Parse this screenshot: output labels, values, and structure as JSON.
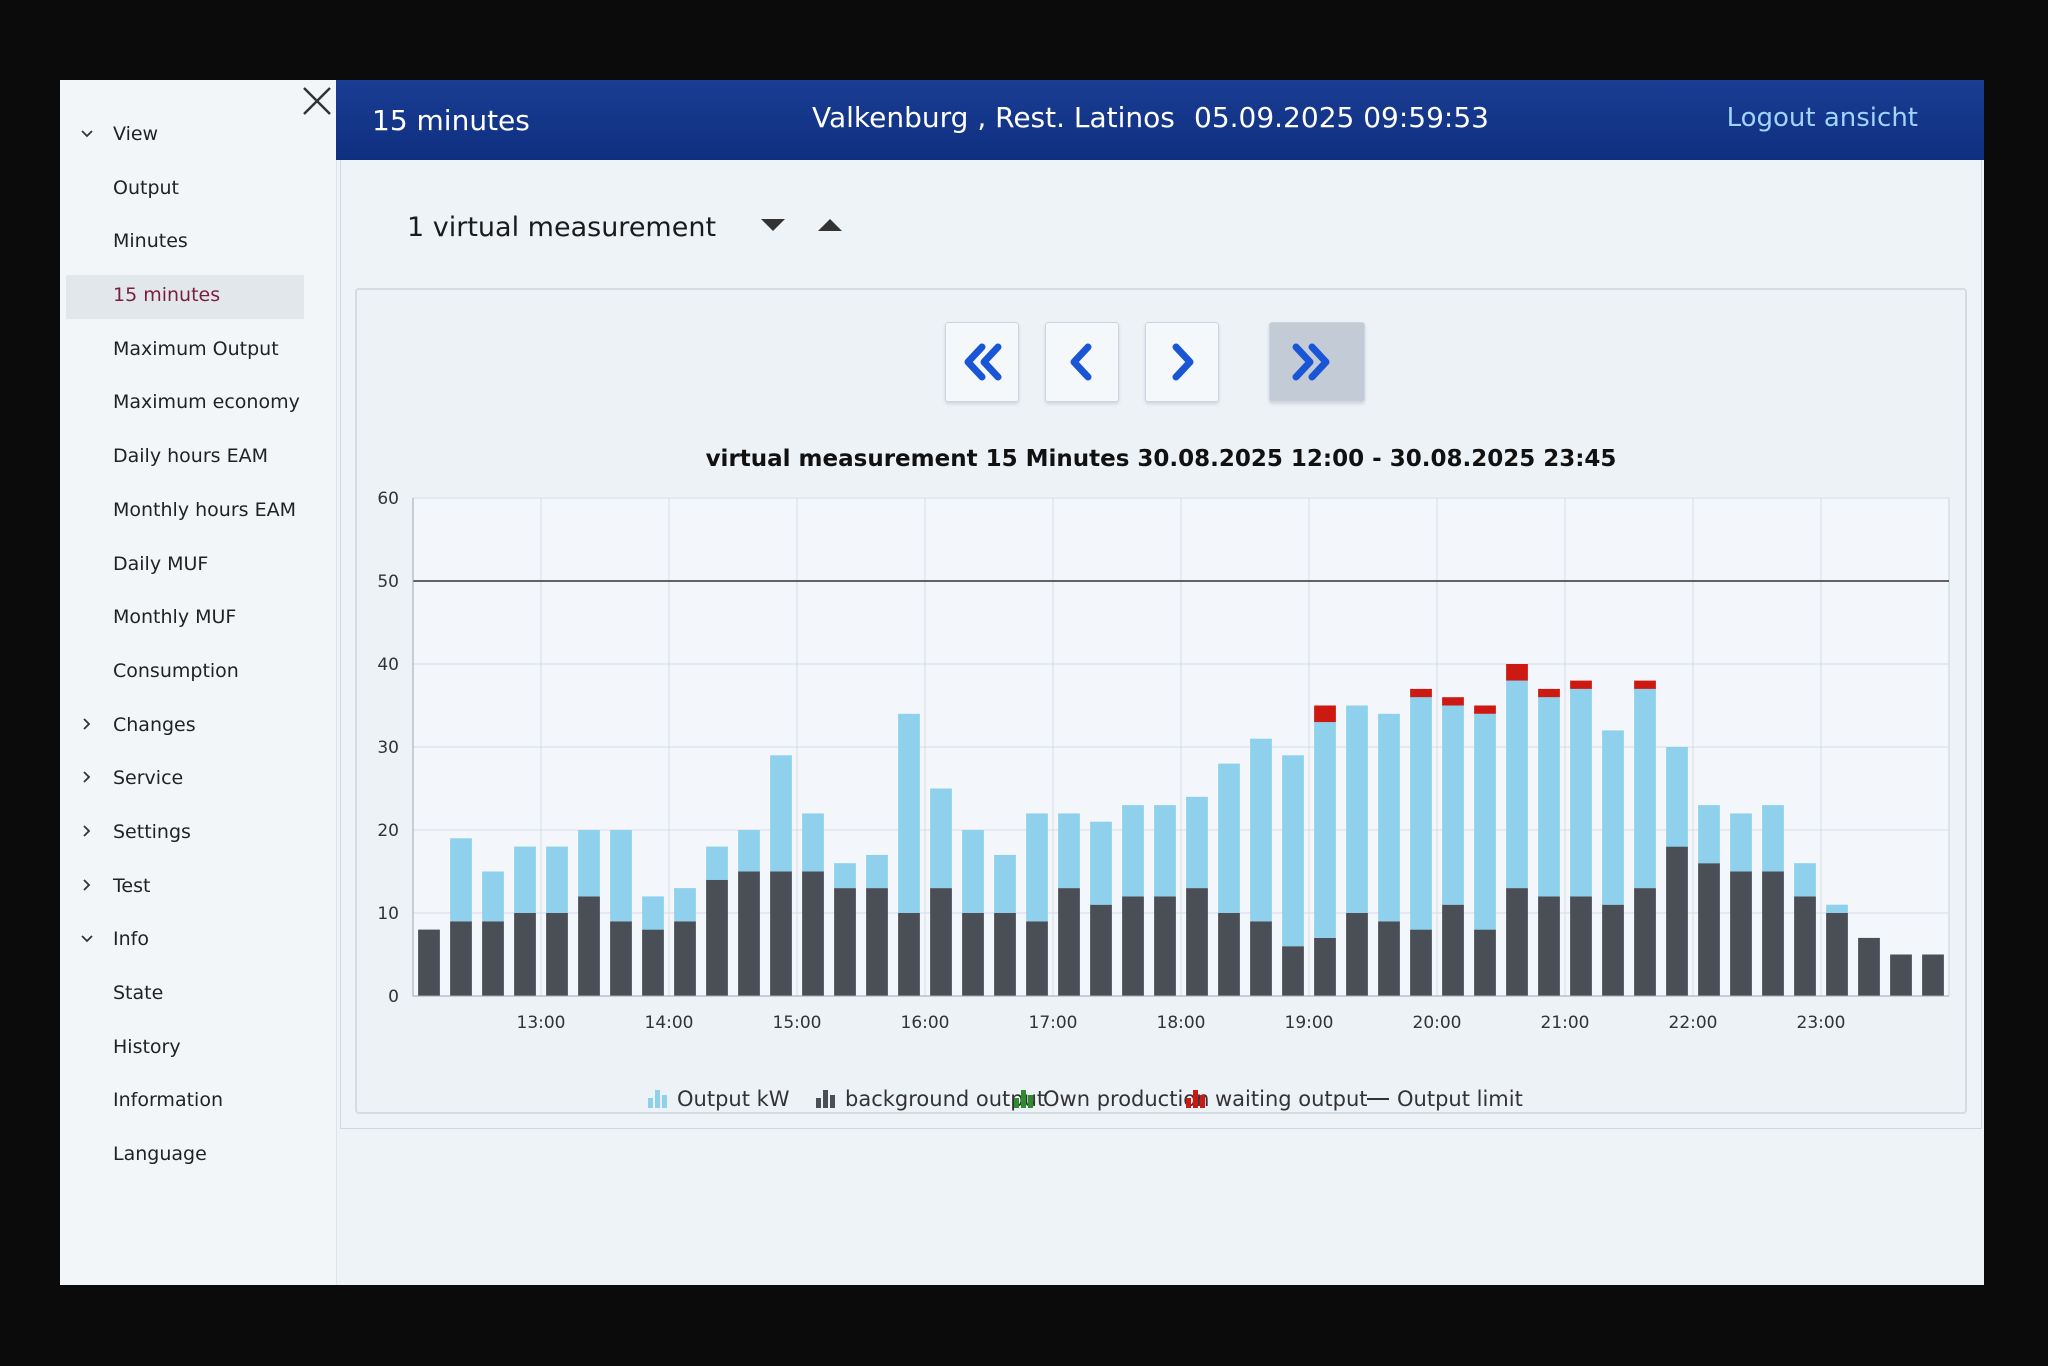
{
  "sidebar": {
    "items": [
      {
        "label": "View",
        "type": "group",
        "expanded": true
      },
      {
        "label": "Output",
        "type": "item"
      },
      {
        "label": "Minutes",
        "type": "item"
      },
      {
        "label": "15 minutes",
        "type": "item",
        "active": true
      },
      {
        "label": "Maximum Output",
        "type": "item"
      },
      {
        "label": "Maximum economy",
        "type": "item"
      },
      {
        "label": "Daily hours EAM",
        "type": "item"
      },
      {
        "label": "Monthly hours EAM",
        "type": "item"
      },
      {
        "label": "Daily MUF",
        "type": "item"
      },
      {
        "label": "Monthly MUF",
        "type": "item"
      },
      {
        "label": "Consumption",
        "type": "item"
      },
      {
        "label": "Changes",
        "type": "group",
        "expanded": false
      },
      {
        "label": "Service",
        "type": "group",
        "expanded": false
      },
      {
        "label": "Settings",
        "type": "group",
        "expanded": false
      },
      {
        "label": "Test",
        "type": "group",
        "expanded": false
      },
      {
        "label": "Info",
        "type": "group",
        "expanded": true
      },
      {
        "label": "State",
        "type": "item"
      },
      {
        "label": "History",
        "type": "item"
      },
      {
        "label": "Information",
        "type": "item"
      },
      {
        "label": "Language",
        "type": "item"
      }
    ]
  },
  "header": {
    "title": "15 minutes",
    "location": "Valkenburg , Rest. Latinos",
    "datetime": "05.09.2025 09:59:53",
    "logout": "Logout ansicht"
  },
  "main": {
    "measurement_select": "1 virtual measurement"
  },
  "colors": {
    "header": "#1a3d93",
    "output": "#8fd1ec",
    "background_output": "#4a4f57",
    "own_production": "#2e8b2e",
    "waiting_output": "#cc1a12",
    "limit_line": "#333333",
    "nav_icon": "#1a55d6"
  },
  "icons": [
    "close-icon",
    "chevron-down-icon",
    "chevron-right-icon",
    "sort-down-icon",
    "sort-up-icon",
    "double-chevron-left-icon",
    "chevron-left-icon",
    "chevron-right-icon",
    "double-chevron-right-icon"
  ],
  "chart_data": {
    "type": "bar",
    "stacked": true,
    "title": "virtual measurement 15 Minutes 30.08.2025 12:00 - 30.08.2025 23:45",
    "ylim": [
      0,
      60
    ],
    "yticks": [
      0,
      10,
      20,
      30,
      40,
      50,
      60
    ],
    "xtick_labels": [
      "13:00",
      "14:00",
      "15:00",
      "16:00",
      "17:00",
      "18:00",
      "19:00",
      "20:00",
      "21:00",
      "22:00",
      "23:00"
    ],
    "grid": true,
    "legend": "bottom",
    "categories": [
      "12:00",
      "12:15",
      "12:30",
      "12:45",
      "13:00",
      "13:15",
      "13:30",
      "13:45",
      "14:00",
      "14:15",
      "14:30",
      "14:45",
      "15:00",
      "15:15",
      "15:30",
      "15:45",
      "16:00",
      "16:15",
      "16:30",
      "16:45",
      "17:00",
      "17:15",
      "17:30",
      "17:45",
      "18:00",
      "18:15",
      "18:30",
      "18:45",
      "19:00",
      "19:15",
      "19:30",
      "19:45",
      "20:00",
      "20:15",
      "20:30",
      "20:45",
      "21:00",
      "21:15",
      "21:30",
      "21:45",
      "22:00",
      "22:15",
      "22:30",
      "22:45",
      "23:00",
      "23:15",
      "23:30",
      "23:45"
    ],
    "series": [
      {
        "name": "background output",
        "values": [
          8,
          9,
          9,
          10,
          10,
          12,
          9,
          8,
          9,
          14,
          15,
          15,
          15,
          13,
          13,
          10,
          13,
          10,
          10,
          9,
          13,
          11,
          12,
          12,
          13,
          10,
          9,
          6,
          7,
          10,
          9,
          8,
          11,
          8,
          13,
          12,
          12,
          11,
          13,
          18,
          16,
          15,
          15,
          12,
          10,
          7,
          5,
          5
        ]
      },
      {
        "name": "Output kW",
        "values": [
          0,
          10,
          6,
          8,
          8,
          8,
          11,
          4,
          4,
          4,
          5,
          14,
          7,
          3,
          4,
          24,
          12,
          10,
          7,
          13,
          9,
          10,
          11,
          11,
          11,
          18,
          22,
          23,
          26,
          25,
          25,
          28,
          24,
          26,
          25,
          24,
          25,
          21,
          24,
          12,
          7,
          7,
          8,
          4,
          1,
          0,
          0,
          0
        ]
      },
      {
        "name": "Own production",
        "values": [
          0,
          0,
          0,
          0,
          0,
          0,
          0,
          0,
          0,
          0,
          0,
          0,
          0,
          0,
          0,
          0,
          0,
          0,
          0,
          0,
          0,
          0,
          0,
          0,
          0,
          0,
          0,
          0,
          0,
          0,
          0,
          0,
          0,
          0,
          0,
          0,
          0,
          0,
          0,
          0,
          0,
          0,
          0,
          0,
          0,
          0,
          0,
          0
        ]
      },
      {
        "name": "waiting output",
        "values": [
          0,
          0,
          0,
          0,
          0,
          0,
          0,
          0,
          0,
          0,
          0,
          0,
          0,
          0,
          0,
          0,
          0,
          0,
          0,
          0,
          0,
          0,
          0,
          0,
          0,
          0,
          0,
          0,
          2,
          0,
          0,
          1,
          1,
          1,
          2,
          1,
          1,
          0,
          1,
          0,
          0,
          0,
          0,
          0,
          0,
          0,
          0,
          0
        ]
      }
    ],
    "output_limit": {
      "name": "Output limit",
      "value": 50
    },
    "legend_entries": [
      "Output kW",
      "background output",
      "Own production",
      "waiting output",
      "Output limit"
    ]
  }
}
